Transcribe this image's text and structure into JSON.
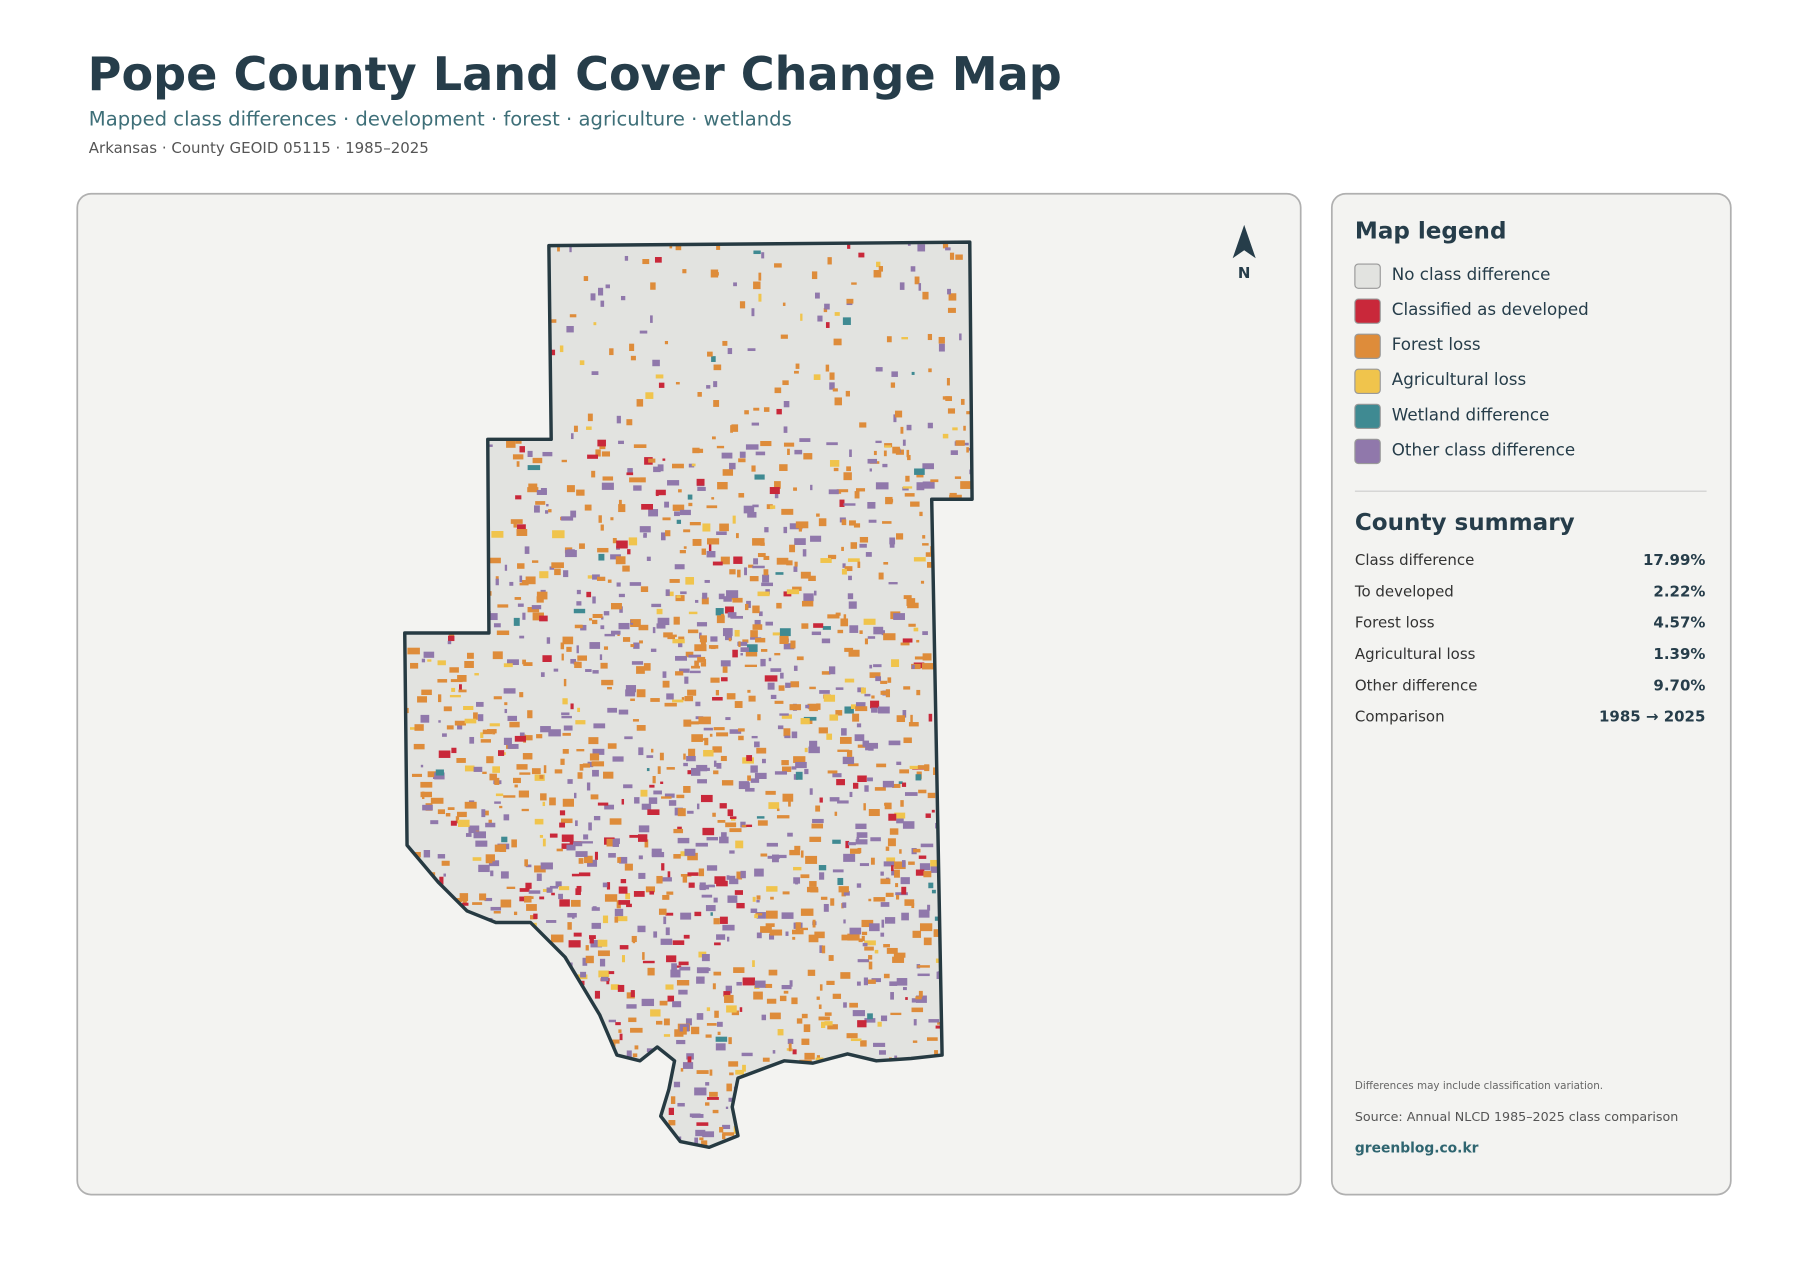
{
  "header": {
    "title": "Pope County Land Cover Change Map",
    "subtitle": "Mapped class differences · development · forest · agriculture · wetlands",
    "meta": "Arkansas · County GEOID 05115 · 1985–2025"
  },
  "north_label": "N",
  "legend": {
    "title": "Map legend",
    "items": [
      {
        "label": "No class difference",
        "color": "#e2e3e0"
      },
      {
        "label": "Classified as developed",
        "color": "#c9283a"
      },
      {
        "label": "Forest loss",
        "color": "#de8c3a"
      },
      {
        "label": "Agricultural loss",
        "color": "#f0c44c"
      },
      {
        "label": "Wetland difference",
        "color": "#3f8a92"
      },
      {
        "label": "Other class difference",
        "color": "#9078ab"
      }
    ]
  },
  "summary": {
    "title": "County summary",
    "rows": [
      [
        "Class difference",
        "17.99%"
      ],
      [
        "To developed",
        "2.22%"
      ],
      [
        "Forest loss",
        "4.57%"
      ],
      [
        "Agricultural loss",
        "1.39%"
      ],
      [
        "Other difference",
        "9.70%"
      ],
      [
        "Comparison",
        "1985 → 2025"
      ]
    ]
  },
  "footer": {
    "note": "Differences may include classification variation.",
    "source": "Source: Annual NLCD 1985–2025 class comparison",
    "credit": "greenblog.co.kr"
  }
}
